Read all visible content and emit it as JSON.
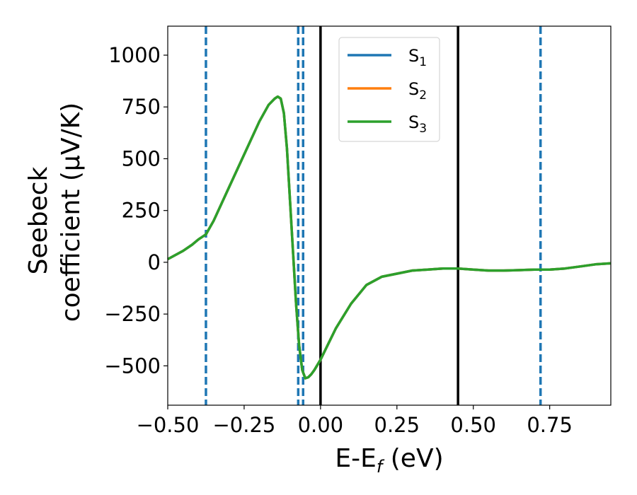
{
  "chart_data": {
    "type": "line",
    "xlabel": {
      "base": "E-E",
      "sub": "f",
      "unit": " (eV)"
    },
    "ylabel": {
      "line1": "Seebeck",
      "line2": "coefficient  (μV/K)"
    },
    "xlim": [
      -0.5,
      0.95
    ],
    "ylim": [
      -690,
      1140
    ],
    "xticks": [
      -0.5,
      -0.25,
      0.0,
      0.25,
      0.5,
      0.75
    ],
    "xtick_labels": [
      "−0.50",
      "−0.25",
      "0.00",
      "0.25",
      "0.50",
      "0.75"
    ],
    "yticks": [
      -500,
      -250,
      0,
      250,
      500,
      750,
      1000
    ],
    "ytick_labels": [
      "−500",
      "−250",
      "0",
      "250",
      "500",
      "750",
      "1000"
    ],
    "grid": false,
    "legend_position": "top-center",
    "x": [
      -0.5,
      -0.45,
      -0.42,
      -0.4,
      -0.375,
      -0.35,
      -0.3,
      -0.25,
      -0.2,
      -0.17,
      -0.15,
      -0.14,
      -0.13,
      -0.12,
      -0.11,
      -0.1,
      -0.09,
      -0.08,
      -0.07,
      -0.06,
      -0.05,
      -0.04,
      -0.03,
      -0.02,
      0.0,
      0.02,
      0.05,
      0.1,
      0.15,
      0.2,
      0.25,
      0.3,
      0.35,
      0.4,
      0.45,
      0.5,
      0.55,
      0.6,
      0.65,
      0.7,
      0.72,
      0.75,
      0.8,
      0.85,
      0.9,
      0.95
    ],
    "series": [
      {
        "name": "S",
        "sub": "1",
        "color": "#1f77b4",
        "values": [
          15,
          55,
          85,
          110,
          135,
          200,
          360,
          520,
          680,
          760,
          790,
          800,
          790,
          720,
          550,
          300,
          50,
          -200,
          -400,
          -520,
          -560,
          -555,
          -540,
          -520,
          -470,
          -410,
          -320,
          -200,
          -110,
          -70,
          -55,
          -40,
          -35,
          -30,
          -30,
          -35,
          -40,
          -40,
          -38,
          -35,
          -35,
          -35,
          -30,
          -20,
          -10,
          -5
        ]
      },
      {
        "name": "S",
        "sub": "2",
        "color": "#ff7f0e",
        "values": [
          15,
          55,
          85,
          110,
          135,
          200,
          360,
          520,
          680,
          760,
          790,
          800,
          790,
          720,
          550,
          300,
          50,
          -200,
          -400,
          -520,
          -560,
          -555,
          -540,
          -520,
          -470,
          -410,
          -320,
          -200,
          -110,
          -70,
          -55,
          -40,
          -35,
          -30,
          -30,
          -35,
          -40,
          -40,
          -38,
          -35,
          -35,
          -35,
          -30,
          -20,
          -10,
          -5
        ]
      },
      {
        "name": "S",
        "sub": "3",
        "color": "#2ca02c",
        "values": [
          15,
          55,
          85,
          110,
          135,
          200,
          360,
          520,
          680,
          760,
          790,
          800,
          790,
          720,
          550,
          300,
          50,
          -200,
          -400,
          -520,
          -560,
          -555,
          -540,
          -520,
          -470,
          -410,
          -320,
          -200,
          -110,
          -70,
          -55,
          -40,
          -35,
          -30,
          -30,
          -35,
          -40,
          -40,
          -38,
          -35,
          -35,
          -35,
          -30,
          -20,
          -10,
          -5
        ]
      }
    ],
    "vlines_solid": [
      0.0,
      0.45
    ],
    "vlines_dashed": [
      -0.375,
      -0.073,
      -0.057,
      0.72
    ],
    "solid_color": "#000000",
    "dashed_color": "#1f77b4"
  }
}
